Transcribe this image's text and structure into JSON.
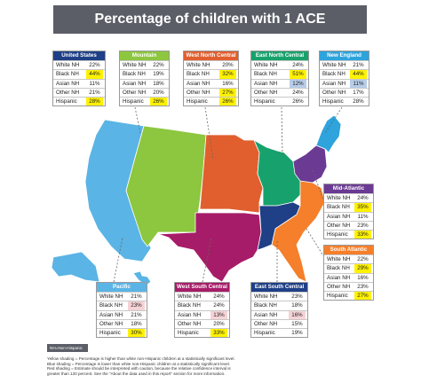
{
  "title": "Percentage of children with 1 ACE",
  "legend_tag": "NH=Non-Hispanic",
  "footnotes": [
    "Yellow shading = Percentage is higher than white non-Hispanic children at a statistically significant level.",
    "Blue shading = Percentage is lower than white non-Hispanic children at a statistically significant level.",
    "Red shading = Estimate should be interpreted with caution, because the relative confidence interval is",
    "greater than 120 percent. See the \"About the data used in this report\" section for more information."
  ],
  "row_labels": [
    "White NH",
    "Black NH",
    "Asian NH",
    "Other NH",
    "Hispanic"
  ],
  "shade_colors": {
    "yellow": "#fff200",
    "blue": "#b7cde9",
    "red": "#f6d3d6"
  },
  "regions": [
    {
      "name": "United States",
      "color": "#1f3f86",
      "values": [
        "22%",
        "44%",
        "11%",
        "21%",
        "28%"
      ],
      "shading": [
        "none",
        "yellow",
        "none",
        "none",
        "yellow"
      ]
    },
    {
      "name": "Mountain",
      "color": "#8dc63f",
      "values": [
        "22%",
        "19%",
        "18%",
        "20%",
        "26%"
      ],
      "shading": [
        "none",
        "none",
        "none",
        "none",
        "yellow"
      ]
    },
    {
      "name": "West North Central",
      "color": "#e15f2e",
      "values": [
        "20%",
        "32%",
        "16%",
        "27%",
        "26%"
      ],
      "shading": [
        "none",
        "yellow",
        "none",
        "yellow",
        "yellow"
      ]
    },
    {
      "name": "East North Central",
      "color": "#17a26d",
      "values": [
        "24%",
        "51%",
        "12%",
        "24%",
        "26%"
      ],
      "shading": [
        "none",
        "yellow",
        "blue",
        "none",
        "none"
      ]
    },
    {
      "name": "New England",
      "color": "#2ea3dc",
      "values": [
        "21%",
        "44%",
        "11%",
        "17%",
        "28%"
      ],
      "shading": [
        "none",
        "yellow",
        "blue",
        "none",
        "none"
      ]
    },
    {
      "name": "Mid-Atlantic",
      "color": "#6b3a93",
      "values": [
        "24%",
        "35%",
        "11%",
        "23%",
        "33%"
      ],
      "shading": [
        "none",
        "yellow",
        "none",
        "none",
        "yellow"
      ]
    },
    {
      "name": "South Atlantic",
      "color": "#f57f2a",
      "values": [
        "22%",
        "29%",
        "16%",
        "23%",
        "27%"
      ],
      "shading": [
        "none",
        "yellow",
        "none",
        "none",
        "yellow"
      ]
    },
    {
      "name": "Pacific",
      "color": "#5ab4e5",
      "values": [
        "21%",
        "23%",
        "21%",
        "18%",
        "30%"
      ],
      "shading": [
        "none",
        "red",
        "none",
        "none",
        "yellow"
      ]
    },
    {
      "name": "West South Central",
      "color": "#a71c68",
      "values": [
        "24%",
        "24%",
        "13%",
        "20%",
        "33%"
      ],
      "shading": [
        "none",
        "none",
        "red",
        "none",
        "yellow"
      ]
    },
    {
      "name": "East South Central",
      "color": "#1f3f86",
      "values": [
        "23%",
        "18%",
        "16%",
        "15%",
        "19%"
      ],
      "shading": [
        "none",
        "none",
        "red",
        "none",
        "none"
      ]
    }
  ]
}
